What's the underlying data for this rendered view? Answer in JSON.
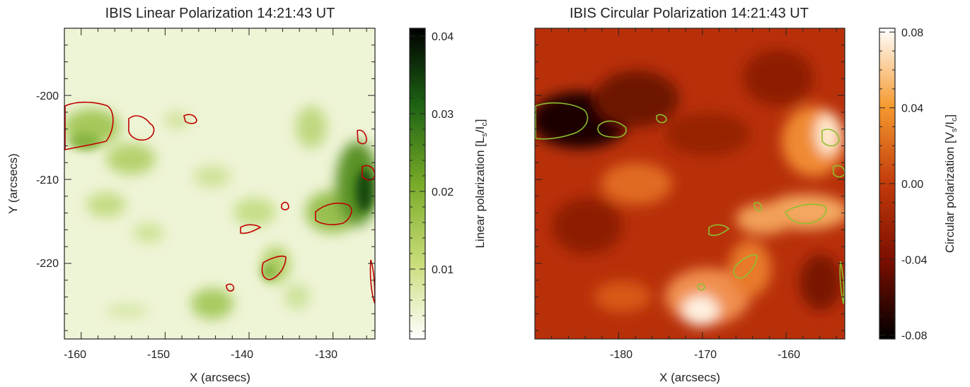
{
  "chart_data": [
    {
      "type": "heatmap",
      "title": "IBIS Linear Polarization 14:21:43 UT",
      "xlabel": "X (arcsecs)",
      "ylabel": "Y (arcsecs)",
      "xlim": [
        -162,
        -125
      ],
      "ylim": [
        -229,
        -192
      ],
      "xticks": [
        "-160",
        "-150",
        "-140",
        "-130"
      ],
      "yticks": [
        "-200",
        "-210",
        "-220"
      ],
      "colorbar": {
        "label": "Linear polarization [L",
        "label_sub1": "s",
        "label_mid": "/I",
        "label_sub2": "c",
        "label_end": "]",
        "range": [
          0.001,
          0.041
        ],
        "ticks": [
          "0.01",
          "0.02",
          "0.03",
          "0.04"
        ],
        "colors": [
          "#ffffff",
          "#c8dc78",
          "#78aa28",
          "#1e6414",
          "#000000"
        ]
      },
      "contour_color": "#c00000"
    },
    {
      "type": "heatmap",
      "title": "IBIS Circular Polarization 14:21:43 UT",
      "xlabel": "X (arcsecs)",
      "ylabel": "",
      "xlim": [
        -190,
        -153
      ],
      "ylim": [
        -229,
        -192
      ],
      "xticks": [
        "-180",
        "-170",
        "-160"
      ],
      "yticks": [],
      "colorbar": {
        "label": "Circular polarization [V",
        "label_sub1": "s",
        "label_mid": "/I",
        "label_sub2": "c",
        "label_end": "]",
        "range": [
          -0.082,
          0.082
        ],
        "ticks": [
          "-0.08",
          "-0.04",
          "0.00",
          "0.04",
          "0.08"
        ],
        "colors": [
          "#000000",
          "#7a0e00",
          "#c23a0a",
          "#f59a30",
          "#ffffff"
        ]
      },
      "contour_color": "#8cc030"
    }
  ]
}
